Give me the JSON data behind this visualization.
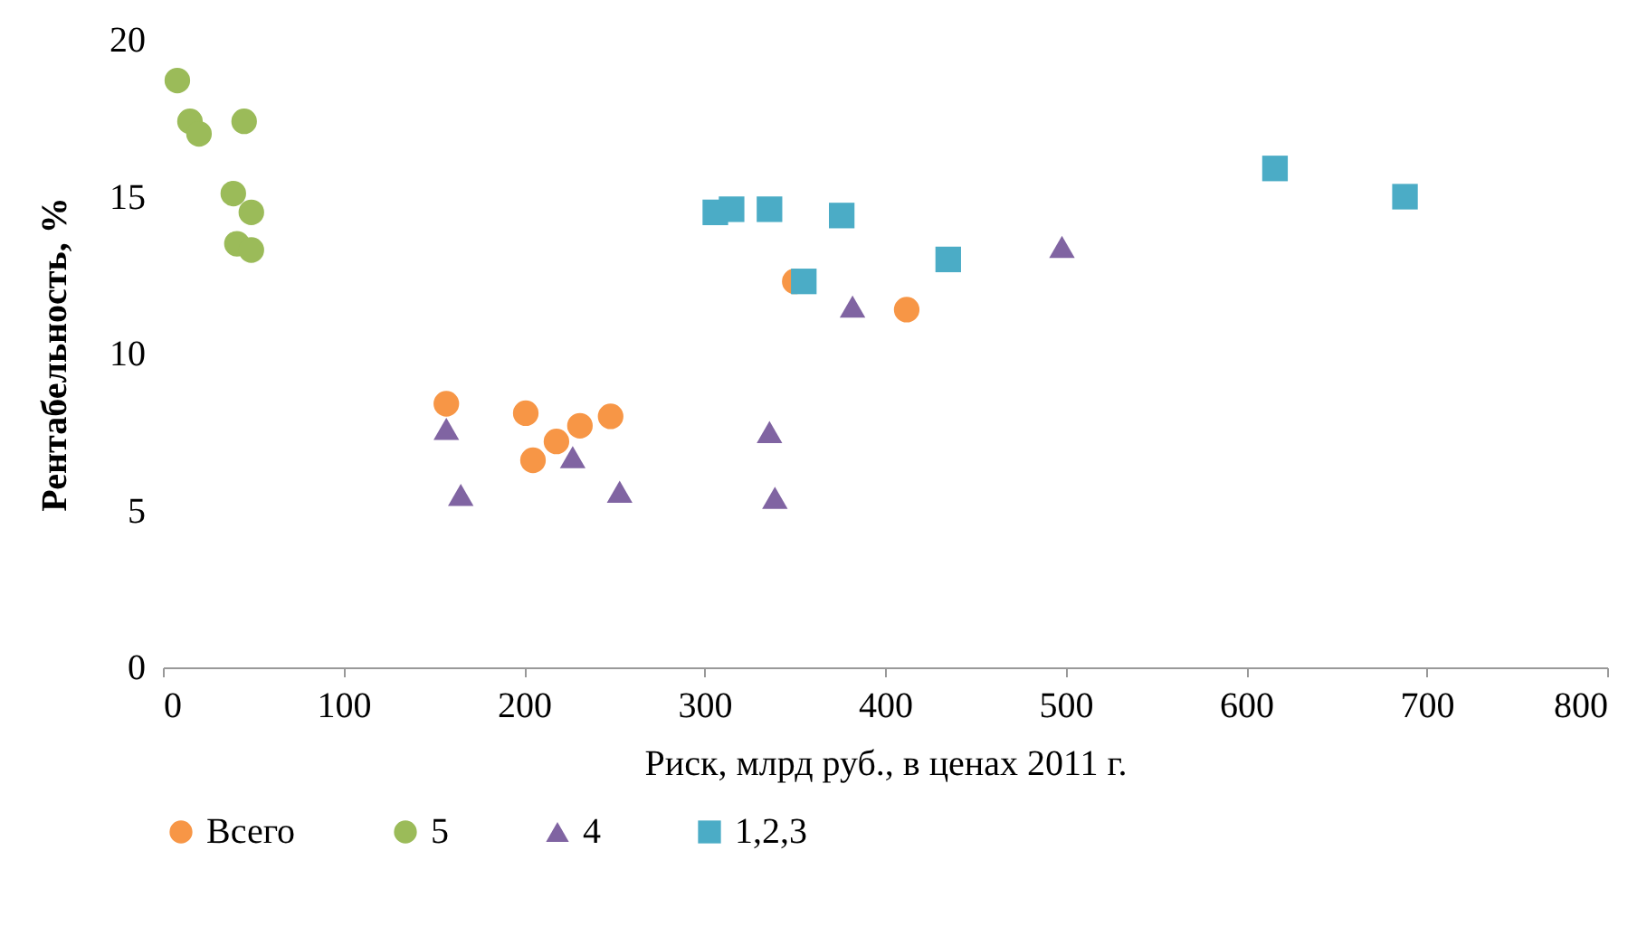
{
  "chart_data": {
    "type": "scatter",
    "xlabel": "Риск, млрд руб., в ценах 2011 г.",
    "ylabel": "Рентабельность, %",
    "xlim": [
      0,
      800
    ],
    "xticks": [
      0,
      100,
      200,
      300,
      400,
      500,
      600,
      700,
      800
    ],
    "ylim": [
      0,
      20
    ],
    "yticks": [
      0,
      5,
      10,
      15,
      20
    ],
    "grid": false,
    "legend": "bottom",
    "series": [
      {
        "name": "Всего",
        "color": "#f79646",
        "marker": "circle",
        "x": [
          157,
          201,
          205,
          218,
          231,
          248,
          350,
          412
        ],
        "values": [
          8.4,
          8.1,
          6.6,
          7.2,
          7.7,
          8.0,
          12.3,
          11.4
        ]
      },
      {
        "name": "5",
        "color": "#9bbb59",
        "marker": "circle",
        "x": [
          8,
          15,
          20,
          45,
          39,
          49,
          41,
          49
        ],
        "values": [
          18.7,
          17.4,
          17.0,
          17.4,
          15.1,
          14.5,
          13.5,
          13.3
        ]
      },
      {
        "name": "4",
        "color": "#8064a2",
        "marker": "triangle",
        "x": [
          157,
          165,
          227,
          253,
          336,
          339,
          382,
          498
        ],
        "values": [
          7.6,
          5.5,
          6.7,
          5.6,
          7.5,
          5.4,
          11.5,
          13.4
        ]
      },
      {
        "name": "1,2,3",
        "color": "#4bacc6",
        "marker": "square",
        "x": [
          306,
          315,
          336,
          376,
          355,
          435,
          616,
          688
        ],
        "values": [
          14.5,
          14.6,
          14.6,
          14.4,
          12.3,
          13.0,
          15.9,
          15.0
        ]
      }
    ]
  }
}
